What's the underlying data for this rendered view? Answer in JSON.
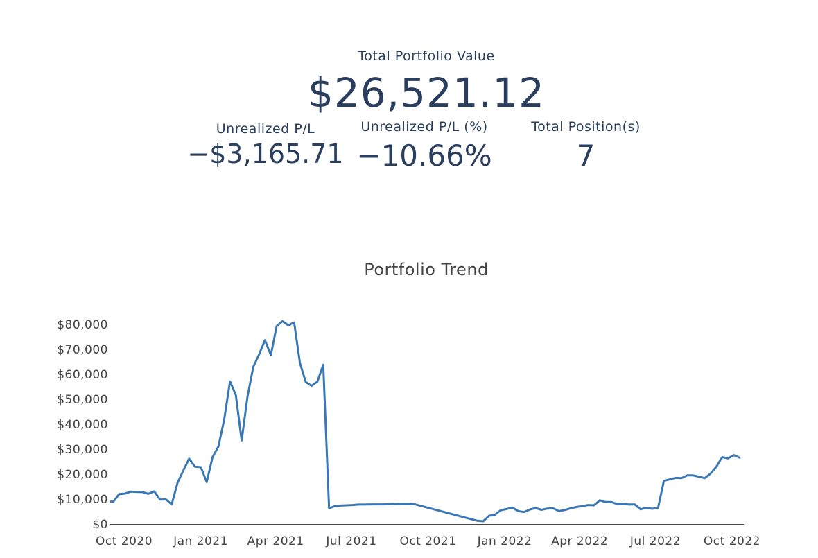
{
  "indicators": {
    "total_value": {
      "title": "Total Portfolio Value",
      "value": "$26,521.12"
    },
    "unrealized_pl": {
      "title": "Unrealized P/L",
      "value": "−$3,165.71"
    },
    "unrealized_pl_pct": {
      "title": "Unrealized P/L (%)",
      "value": "−10.66%"
    },
    "positions": {
      "title": "Total Position(s)",
      "value": "7"
    }
  },
  "colors": {
    "text": "#2a3f5f",
    "line": "#3a78b5",
    "axis": "#444444"
  },
  "chart_data": {
    "type": "line",
    "title": "Portfolio Trend",
    "xlabel": "",
    "ylabel": "",
    "grid": false,
    "xlim": [
      "2020-10-01",
      "2022-10-31"
    ],
    "ylim": [
      0,
      80000
    ],
    "x_ticks": [
      {
        "date": "2020-10-01",
        "label": "Oct 2020"
      },
      {
        "date": "2021-01-01",
        "label": "Jan 2021"
      },
      {
        "date": "2021-04-01",
        "label": "Apr 2021"
      },
      {
        "date": "2021-07-01",
        "label": "Jul 2021"
      },
      {
        "date": "2021-10-01",
        "label": "Oct 2021"
      },
      {
        "date": "2022-01-01",
        "label": "Jan 2022"
      },
      {
        "date": "2022-04-01",
        "label": "Apr 2022"
      },
      {
        "date": "2022-07-01",
        "label": "Jul 2022"
      },
      {
        "date": "2022-10-01",
        "label": "Oct 2022"
      }
    ],
    "y_ticks": [
      {
        "value": 0,
        "label": "$0"
      },
      {
        "value": 10000,
        "label": "$10,000"
      },
      {
        "value": 20000,
        "label": "$20,000"
      },
      {
        "value": 30000,
        "label": "$30,000"
      },
      {
        "value": 40000,
        "label": "$40,000"
      },
      {
        "value": 50000,
        "label": "$50,000"
      },
      {
        "value": 60000,
        "label": "$60,000"
      },
      {
        "value": 70000,
        "label": "$70,000"
      },
      {
        "value": 80000,
        "label": "$80,000"
      }
    ],
    "series": [
      {
        "points": [
          [
            "2020-10-01",
            9000
          ],
          [
            "2020-10-04",
            9000
          ],
          [
            "2020-10-11",
            12000
          ],
          [
            "2020-10-18",
            12200
          ],
          [
            "2020-10-25",
            13000
          ],
          [
            "2020-11-01",
            12900
          ],
          [
            "2020-11-08",
            12800
          ],
          [
            "2020-11-15",
            12100
          ],
          [
            "2020-11-22",
            13100
          ],
          [
            "2020-11-29",
            9800
          ],
          [
            "2020-12-06",
            9900
          ],
          [
            "2020-12-13",
            7900
          ],
          [
            "2020-12-20",
            16500
          ],
          [
            "2020-12-27",
            21500
          ],
          [
            "2021-01-03",
            26200
          ],
          [
            "2021-01-10",
            23000
          ],
          [
            "2021-01-17",
            22800
          ],
          [
            "2021-01-24",
            16800
          ],
          [
            "2021-01-31",
            26800
          ],
          [
            "2021-02-07",
            31000
          ],
          [
            "2021-02-14",
            41800
          ],
          [
            "2021-02-21",
            57200
          ],
          [
            "2021-02-28",
            51700
          ],
          [
            "2021-03-07",
            33500
          ],
          [
            "2021-03-14",
            51000
          ],
          [
            "2021-03-21",
            63000
          ],
          [
            "2021-03-28",
            68000
          ],
          [
            "2021-04-04",
            73700
          ],
          [
            "2021-04-11",
            67700
          ],
          [
            "2021-04-18",
            79300
          ],
          [
            "2021-04-25",
            81300
          ],
          [
            "2021-05-02",
            79600
          ],
          [
            "2021-05-09",
            80800
          ],
          [
            "2021-05-16",
            64500
          ],
          [
            "2021-05-23",
            56900
          ],
          [
            "2021-05-30",
            55400
          ],
          [
            "2021-06-06",
            57100
          ],
          [
            "2021-06-13",
            63800
          ],
          [
            "2021-06-20",
            6300
          ],
          [
            "2021-06-27",
            7200
          ],
          [
            "2021-07-04",
            7400
          ],
          [
            "2021-07-11",
            7500
          ],
          [
            "2021-07-18",
            7600
          ],
          [
            "2021-07-25",
            7800
          ],
          [
            "2021-08-01",
            7800
          ],
          [
            "2021-08-08",
            7900
          ],
          [
            "2021-08-15",
            7900
          ],
          [
            "2021-08-22",
            7900
          ],
          [
            "2021-09-01",
            8000
          ],
          [
            "2021-09-15",
            8100
          ],
          [
            "2021-09-25",
            8100
          ],
          [
            "2021-10-01",
            7900
          ],
          [
            "2021-12-15",
            1300
          ],
          [
            "2021-12-22",
            1100
          ],
          [
            "2021-12-29",
            3300
          ],
          [
            "2022-01-05",
            3700
          ],
          [
            "2022-01-12",
            5500
          ],
          [
            "2022-01-19",
            6000
          ],
          [
            "2022-01-26",
            6600
          ],
          [
            "2022-02-02",
            5200
          ],
          [
            "2022-02-09",
            4800
          ],
          [
            "2022-02-16",
            5800
          ],
          [
            "2022-02-23",
            6400
          ],
          [
            "2022-03-02",
            5700
          ],
          [
            "2022-03-09",
            6200
          ],
          [
            "2022-03-16",
            6300
          ],
          [
            "2022-03-23",
            5200
          ],
          [
            "2022-03-30",
            5600
          ],
          [
            "2022-04-06",
            6300
          ],
          [
            "2022-04-13",
            6800
          ],
          [
            "2022-04-20",
            7200
          ],
          [
            "2022-04-27",
            7600
          ],
          [
            "2022-05-04",
            7500
          ],
          [
            "2022-05-11",
            9500
          ],
          [
            "2022-05-18",
            8800
          ],
          [
            "2022-05-25",
            8800
          ],
          [
            "2022-06-01",
            8000
          ],
          [
            "2022-06-08",
            8200
          ],
          [
            "2022-06-15",
            7800
          ],
          [
            "2022-06-22",
            7900
          ],
          [
            "2022-06-29",
            5900
          ],
          [
            "2022-07-06",
            6500
          ],
          [
            "2022-07-13",
            6100
          ],
          [
            "2022-07-20",
            6500
          ],
          [
            "2022-07-27",
            17300
          ],
          [
            "2022-08-03",
            17900
          ],
          [
            "2022-08-10",
            18500
          ],
          [
            "2022-08-17",
            18400
          ],
          [
            "2022-08-24",
            19500
          ],
          [
            "2022-08-31",
            19500
          ],
          [
            "2022-09-07",
            19000
          ],
          [
            "2022-09-14",
            18400
          ],
          [
            "2022-09-21",
            20200
          ],
          [
            "2022-09-28",
            23000
          ],
          [
            "2022-10-05",
            26800
          ],
          [
            "2022-10-12",
            26300
          ],
          [
            "2022-10-19",
            27600
          ],
          [
            "2022-10-26",
            26600
          ]
        ]
      }
    ]
  }
}
